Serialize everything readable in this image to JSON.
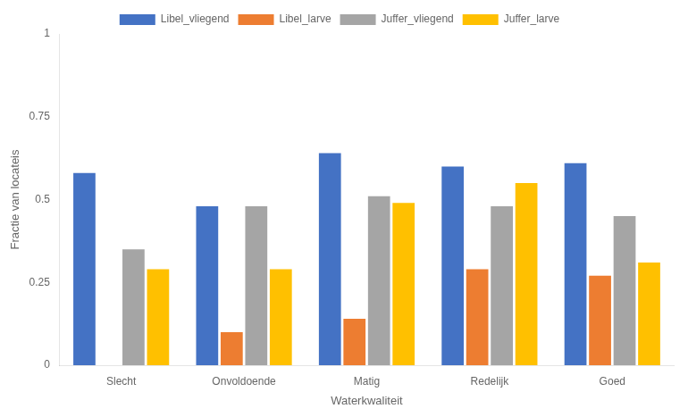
{
  "chart_data": {
    "type": "bar",
    "xlabel": "Waterkwaliteit",
    "ylabel": "Fractie van locateis",
    "categories": [
      "Slecht",
      "Onvoldoende",
      "Matig",
      "Redelijk",
      "Goed"
    ],
    "series": [
      {
        "name": "Libel_vliegend",
        "color": "#4472C4",
        "values": [
          0.58,
          0.48,
          0.64,
          0.6,
          0.61
        ]
      },
      {
        "name": "Libel_larve",
        "color": "#ED7D31",
        "values": [
          0.0,
          0.1,
          0.14,
          0.29,
          0.27
        ]
      },
      {
        "name": "Juffer_vliegend",
        "color": "#A5A5A5",
        "values": [
          0.35,
          0.48,
          0.51,
          0.48,
          0.45
        ]
      },
      {
        "name": "Juffer_larve",
        "color": "#FFC000",
        "values": [
          0.29,
          0.29,
          0.49,
          0.55,
          0.31
        ]
      }
    ],
    "ylim": [
      0,
      1
    ],
    "yticks": [
      0,
      0.25,
      0.5,
      0.75,
      1
    ],
    "grid": false,
    "legend": "top"
  }
}
